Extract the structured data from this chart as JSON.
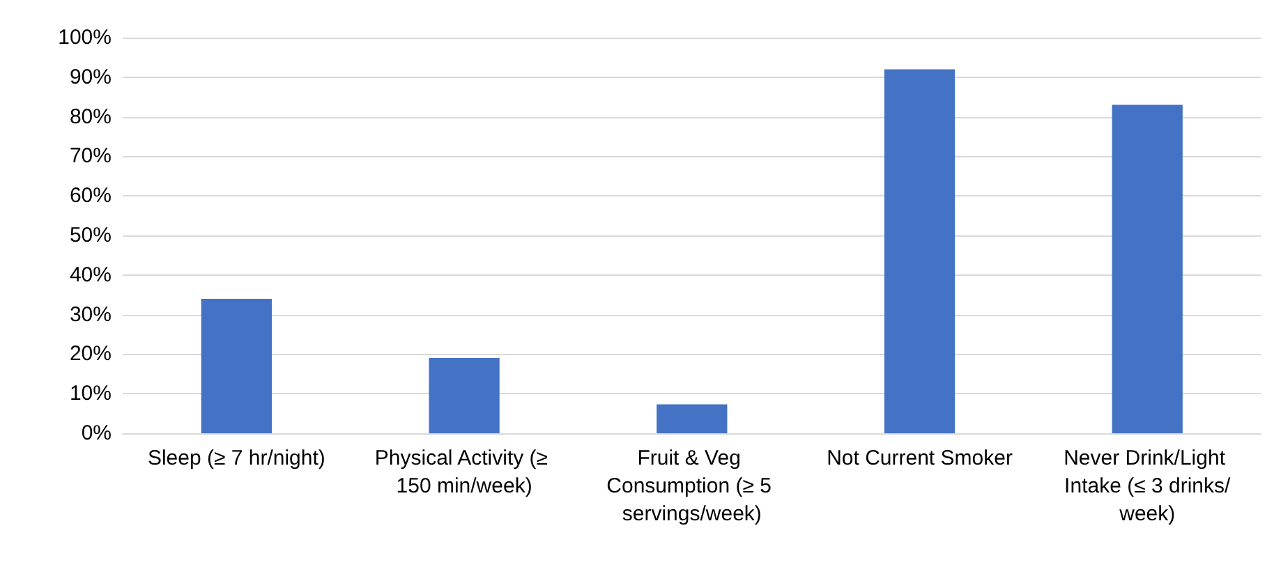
{
  "chart_data": {
    "type": "bar",
    "categories": [
      "Sleep (≥ 7 hr/night)",
      "Physical Activity (≥ 150 min/week)",
      "Fruit & Veg Consumption (≥ 5 servings/week)",
      "Not Current Smoker",
      "Never Drink/Light Intake (≤ 3 drinks/week)"
    ],
    "values": [
      34,
      19,
      7.3,
      92,
      83
    ],
    "color": "#4472c4",
    "ylim": [
      0,
      100
    ],
    "yticks": [
      {
        "value": 0,
        "label": "0%"
      },
      {
        "value": 10,
        "label": "10%"
      },
      {
        "value": 20,
        "label": "20%"
      },
      {
        "value": 30,
        "label": "30%"
      },
      {
        "value": 40,
        "label": "40%"
      },
      {
        "value": 50,
        "label": "50%"
      },
      {
        "value": 60,
        "label": "60%"
      },
      {
        "value": 70,
        "label": "70%"
      },
      {
        "value": 80,
        "label": "80%"
      },
      {
        "value": 90,
        "label": "90%"
      },
      {
        "value": 100,
        "label": "100%"
      }
    ],
    "grid": true
  }
}
